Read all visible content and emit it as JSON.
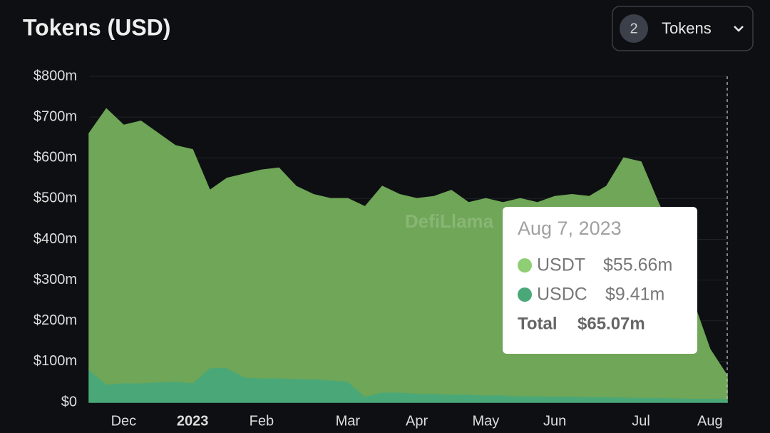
{
  "chart_data": {
    "type": "stacked-area",
    "title": "Tokens (USD)",
    "control": {
      "count": "2",
      "label": "Tokens"
    },
    "watermark": "DefiLlama",
    "categories": [
      null,
      null,
      "Dec",
      null,
      null,
      null,
      "2023",
      null,
      null,
      null,
      "Feb",
      null,
      null,
      null,
      null,
      "Mar",
      null,
      null,
      null,
      "Apr",
      null,
      null,
      null,
      "May",
      null,
      null,
      null,
      "Jun",
      null,
      null,
      null,
      null,
      "Jul",
      null,
      null,
      null,
      "Aug",
      null
    ],
    "series": [
      {
        "name": "USDC",
        "color": "#4aa878",
        "values": [
          80,
          45,
          48,
          48,
          50,
          52,
          48,
          85,
          85,
          62,
          60,
          60,
          58,
          58,
          55,
          52,
          15,
          25,
          25,
          22,
          22,
          20,
          20,
          18,
          18,
          16,
          16,
          15,
          15,
          14,
          14,
          13,
          12,
          12,
          11,
          10,
          10,
          9.41
        ]
      },
      {
        "name": "USDT",
        "color": "#6fa657",
        "values": [
          580,
          675,
          632,
          642,
          610,
          578,
          572,
          435,
          465,
          498,
          510,
          515,
          472,
          452,
          445,
          448,
          465,
          505,
          485,
          478,
          483,
          500,
          470,
          482,
          472,
          484,
          474,
          490,
          495,
          491,
          516,
          587,
          578,
          478,
          389,
          240,
          120,
          55.66
        ]
      }
    ],
    "ylim": [
      0,
      800
    ],
    "yticks": [
      {
        "value": 0,
        "label": "$0"
      },
      {
        "value": 100,
        "label": "$100m"
      },
      {
        "value": 200,
        "label": "$200m"
      },
      {
        "value": 300,
        "label": "$300m"
      },
      {
        "value": 400,
        "label": "$400m"
      },
      {
        "value": 500,
        "label": "$500m"
      },
      {
        "value": 600,
        "label": "$600m"
      },
      {
        "value": 700,
        "label": "$700m"
      },
      {
        "value": 800,
        "label": "$800m"
      }
    ],
    "grid": true,
    "tooltip": {
      "title": "Aug 7, 2023",
      "values": [
        "$9.41m",
        "$55.66m"
      ],
      "total_label": "Total",
      "total": "$65.07m"
    }
  }
}
